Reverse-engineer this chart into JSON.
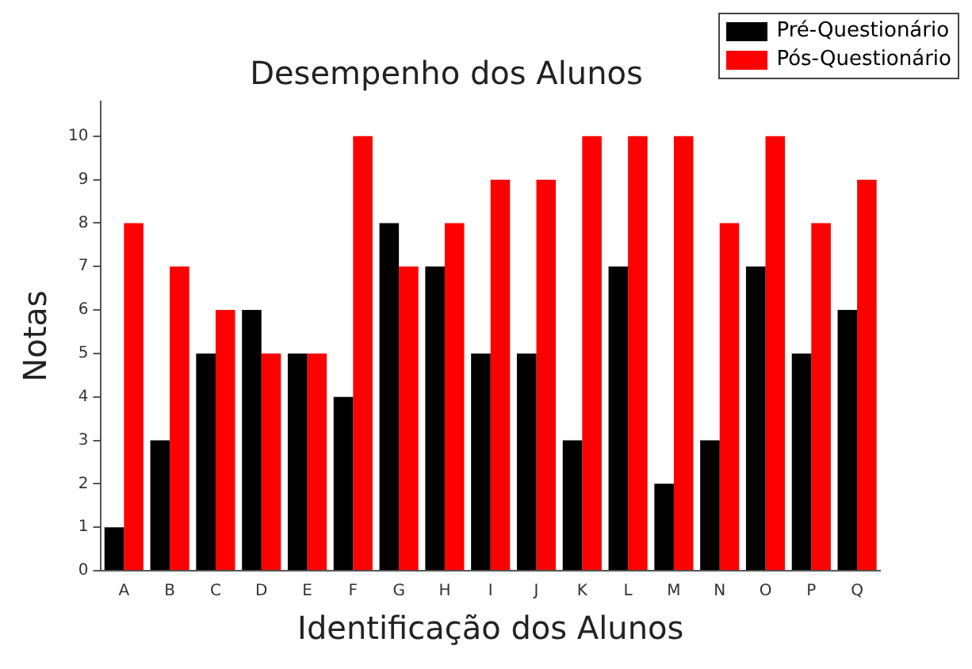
{
  "chart_data": {
    "type": "bar",
    "title": "Desempenho dos Alunos",
    "xlabel": "Identificação dos Alunos",
    "ylabel": "Notas",
    "categories": [
      "A",
      "B",
      "C",
      "D",
      "E",
      "F",
      "G",
      "H",
      "I",
      "J",
      "K",
      "L",
      "M",
      "N",
      "O",
      "P",
      "Q"
    ],
    "series": [
      {
        "name": "Pré-Questionário",
        "color": "#000000",
        "values": [
          1,
          3,
          5,
          6,
          5,
          4,
          8,
          7,
          5,
          5,
          3,
          7,
          2,
          3,
          7,
          5,
          6
        ]
      },
      {
        "name": "Pós-Questionário",
        "color": "#ff0000",
        "values": [
          8,
          7,
          6,
          5,
          5,
          10,
          7,
          8,
          9,
          9,
          10,
          10,
          10,
          8,
          10,
          8,
          9
        ]
      }
    ],
    "ylim": [
      0,
      10.8
    ],
    "yticks": [
      0,
      1,
      2,
      3,
      4,
      5,
      6,
      7,
      8,
      9,
      10
    ],
    "grid": false,
    "legend": "top right"
  }
}
